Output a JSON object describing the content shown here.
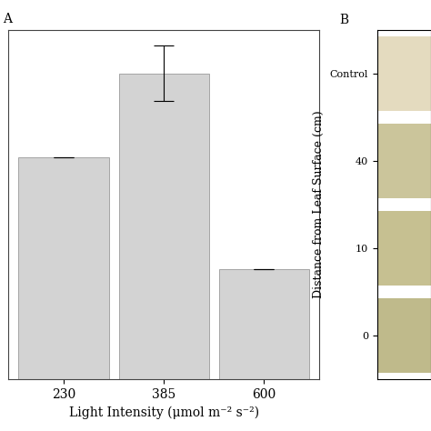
{
  "chart_data": [
    {
      "type": "bar",
      "title": "A",
      "xlabel": "Light Intensity (μmol m⁻² s⁻²)",
      "categories": [
        "230",
        "385",
        "600"
      ],
      "values": [
        2.42,
        3.33,
        1.2
      ],
      "errors": [
        0.0,
        0.3,
        0.0
      ],
      "color": "#d3d3d3",
      "ylim": [
        0,
        3.8
      ],
      "tick_labels": "x",
      "grid": false
    },
    {
      "type": "image",
      "title": "B",
      "ylabel": "Distance from Leaf Surface (cm)",
      "categories": [
        "Control",
        "40",
        "10",
        "0"
      ],
      "colors": [
        "#e4dbbf",
        "#cbc59b",
        "#c6c091",
        "#bfba8b"
      ],
      "tick_labels": "y"
    }
  ]
}
